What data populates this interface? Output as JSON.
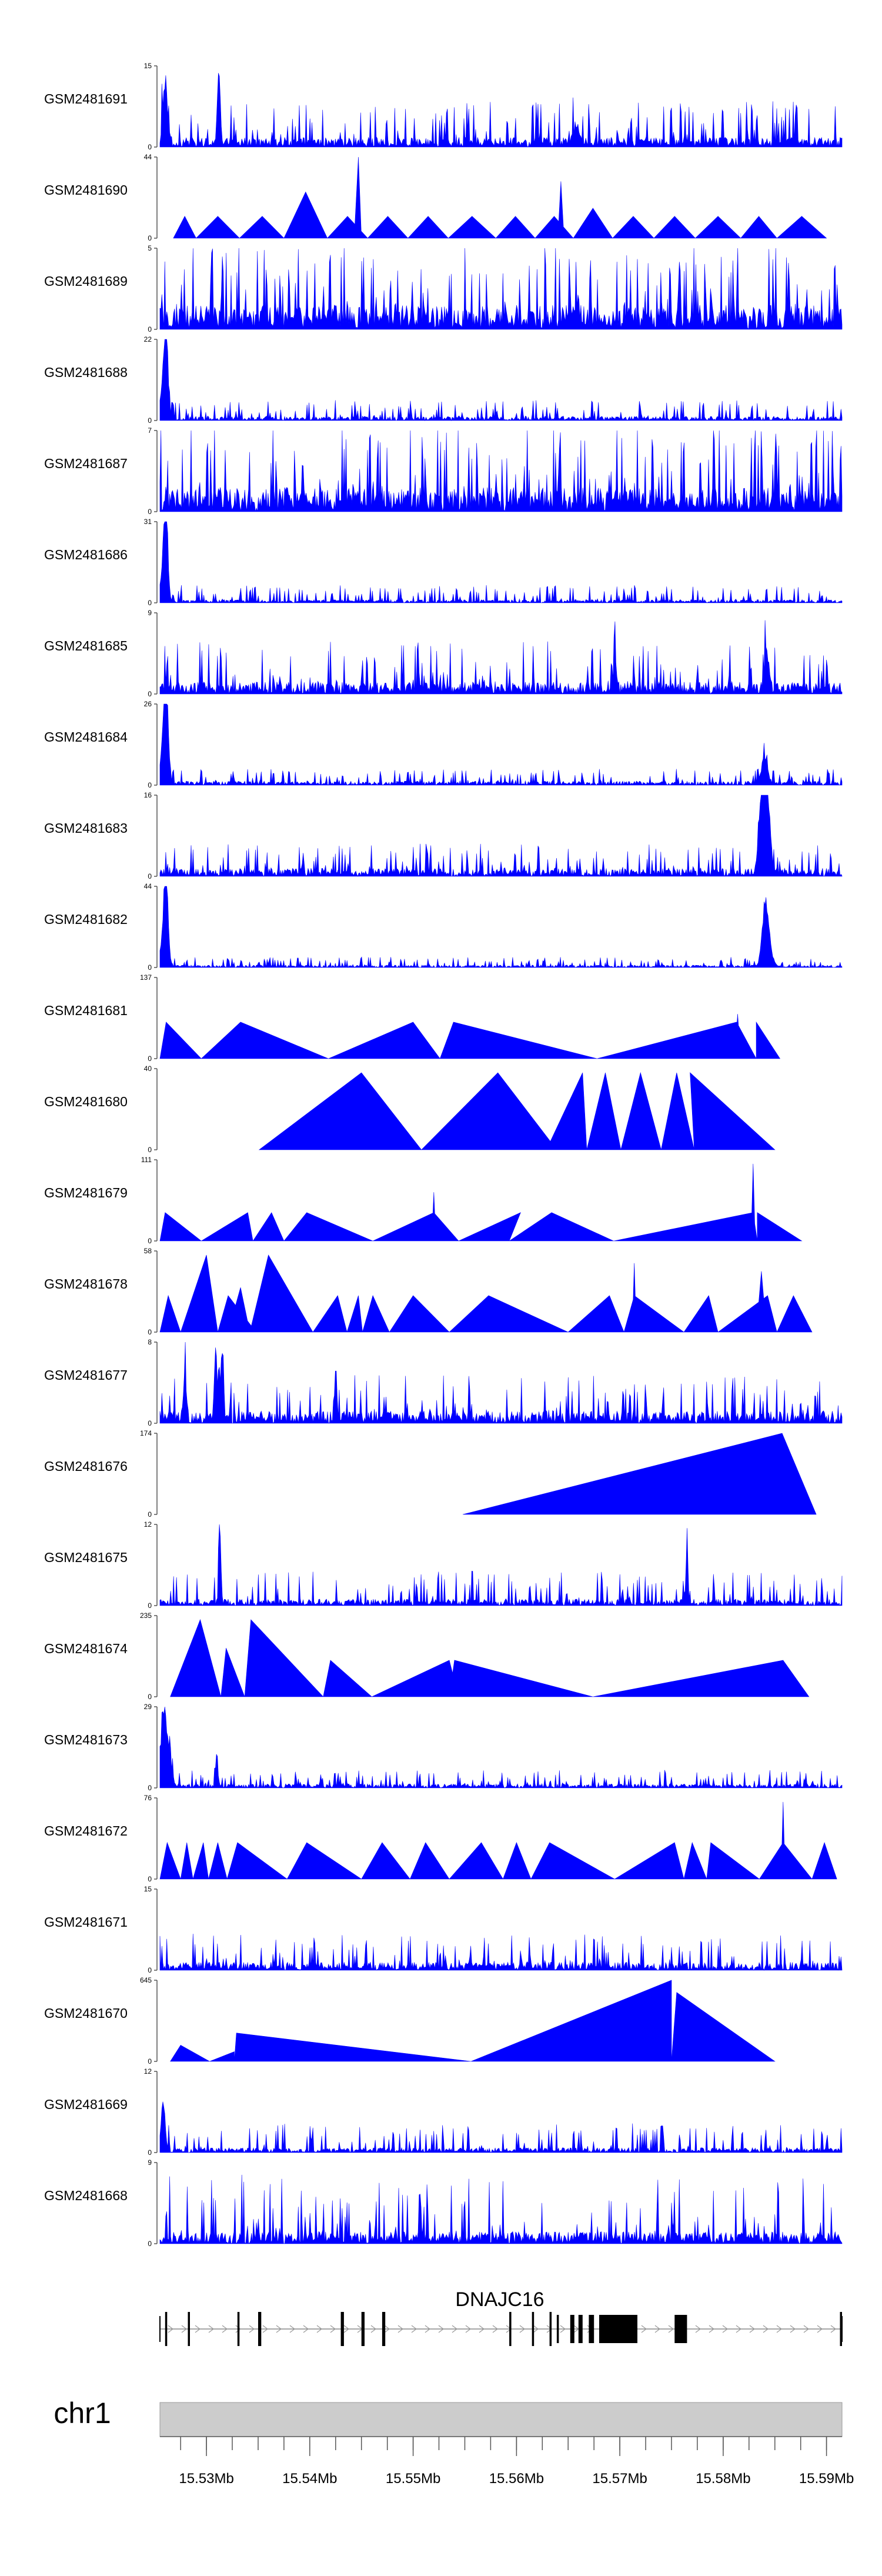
{
  "chart_data": {
    "type": "area",
    "title": "",
    "chromosome": "chr1",
    "xlim_bp": [
      15525500,
      15591500
    ],
    "axis_ticks_bp": [
      15530000,
      15540000,
      15550000,
      15560000,
      15570000,
      15580000,
      15590000
    ],
    "axis_tick_labels": [
      "15.53Mb",
      "15.54Mb",
      "15.55Mb",
      "15.56Mb",
      "15.57Mb",
      "15.58Mb",
      "15.59Mb"
    ],
    "gene": {
      "name": "DNAJC16",
      "start_bp": 15525500,
      "end_bp": 15591500,
      "strand": "+",
      "exons": [
        {
          "start_bp": 15526000,
          "end_bp": 15526200,
          "thick": false
        },
        {
          "start_bp": 15528200,
          "end_bp": 15528400,
          "thick": false
        },
        {
          "start_bp": 15533000,
          "end_bp": 15533200,
          "thick": false
        },
        {
          "start_bp": 15535000,
          "end_bp": 15535300,
          "thick": false
        },
        {
          "start_bp": 15543000,
          "end_bp": 15543300,
          "thick": false
        },
        {
          "start_bp": 15545000,
          "end_bp": 15545300,
          "thick": false
        },
        {
          "start_bp": 15547000,
          "end_bp": 15547300,
          "thick": false
        },
        {
          "start_bp": 15559300,
          "end_bp": 15559500,
          "thick": false
        },
        {
          "start_bp": 15561500,
          "end_bp": 15561700,
          "thick": false
        },
        {
          "start_bp": 15563200,
          "end_bp": 15563400,
          "thick": false
        },
        {
          "start_bp": 15563900,
          "end_bp": 15564100,
          "thick": true
        },
        {
          "start_bp": 15565200,
          "end_bp": 15565600,
          "thick": true
        },
        {
          "start_bp": 15566000,
          "end_bp": 15566400,
          "thick": true
        },
        {
          "start_bp": 15567000,
          "end_bp": 15567500,
          "thick": true
        },
        {
          "start_bp": 15568000,
          "end_bp": 15571700,
          "thick": true
        },
        {
          "start_bp": 15575300,
          "end_bp": 15576500,
          "thick": true
        },
        {
          "start_bp": 15591300,
          "end_bp": 15591500,
          "thick": false
        }
      ]
    },
    "series": [
      {
        "name": "GSM2481691",
        "ymax": 15,
        "style": "noisy",
        "base": 0.12,
        "spike": 0.45,
        "seed": 91,
        "peaks": [
          [
            15526000,
            0.85,
            300
          ],
          [
            15531200,
            1.0,
            200
          ],
          [
            15565800,
            0.25,
            400
          ]
        ],
        "tri": []
      },
      {
        "name": "GSM2481690",
        "ymax": 44,
        "style": "triangles",
        "seed": 90,
        "peaks": [],
        "tri": [
          [
            15526800,
            15529000,
            15527900,
            0.27
          ],
          [
            15529000,
            15533200,
            15531100,
            0.27
          ],
          [
            15533200,
            15537500,
            15535400,
            0.27
          ],
          [
            15537500,
            15541700,
            15539600,
            0.57
          ],
          [
            15541700,
            15545600,
            15543650,
            0.27
          ],
          [
            15544300,
            15545000,
            15544700,
            1.0
          ],
          [
            15545600,
            15549500,
            15547550,
            0.27
          ],
          [
            15549500,
            15553400,
            15551450,
            0.27
          ],
          [
            15553400,
            15558000,
            15555700,
            0.27
          ],
          [
            15558000,
            15561800,
            15559900,
            0.27
          ],
          [
            15561800,
            15565500,
            15563650,
            0.27
          ],
          [
            15564000,
            15564600,
            15564300,
            0.7
          ],
          [
            15565500,
            15569300,
            15567400,
            0.37
          ],
          [
            15569300,
            15573300,
            15571300,
            0.27
          ],
          [
            15573300,
            15577300,
            15575300,
            0.27
          ],
          [
            15577300,
            15581700,
            15579500,
            0.27
          ],
          [
            15581700,
            15585200,
            15583450,
            0.27
          ],
          [
            15585200,
            15590000,
            15587600,
            0.27
          ]
        ]
      },
      {
        "name": "GSM2481689",
        "ymax": 5,
        "style": "noisy",
        "base": 0.3,
        "spike": 0.75,
        "seed": 89,
        "peaks": [],
        "tri": []
      },
      {
        "name": "GSM2481688",
        "ymax": 22,
        "style": "noisy",
        "base": 0.05,
        "spike": 0.2,
        "seed": 88,
        "peaks": [
          [
            15526100,
            1.0,
            220
          ],
          [
            15525900,
            0.6,
            400
          ]
        ],
        "tri": []
      },
      {
        "name": "GSM2481687",
        "ymax": 7,
        "style": "noisy",
        "base": 0.3,
        "spike": 0.85,
        "seed": 87,
        "peaks": [],
        "tri": []
      },
      {
        "name": "GSM2481686",
        "ymax": 31,
        "style": "noisy",
        "base": 0.04,
        "spike": 0.18,
        "seed": 86,
        "peaks": [
          [
            15526100,
            1.0,
            220
          ],
          [
            15525900,
            0.55,
            400
          ]
        ],
        "tri": []
      },
      {
        "name": "GSM2481685",
        "ymax": 9,
        "style": "noisy",
        "base": 0.15,
        "spike": 0.5,
        "seed": 85,
        "peaks": [
          [
            15569500,
            0.95,
            120
          ],
          [
            15584200,
            0.5,
            300
          ]
        ],
        "tri": []
      },
      {
        "name": "GSM2481684",
        "ymax": 26,
        "style": "noisy",
        "base": 0.05,
        "spike": 0.15,
        "seed": 84,
        "peaks": [
          [
            15526100,
            1.0,
            250
          ],
          [
            15525900,
            0.6,
            450
          ],
          [
            15584000,
            0.38,
            400
          ]
        ],
        "tri": []
      },
      {
        "name": "GSM2481683",
        "ymax": 16,
        "style": "noisy",
        "base": 0.1,
        "spike": 0.3,
        "seed": 83,
        "peaks": [
          [
            15584000,
            1.0,
            350
          ],
          [
            15583600,
            0.8,
            300
          ],
          [
            15584400,
            0.75,
            300
          ]
        ],
        "tri": []
      },
      {
        "name": "GSM2481682",
        "ymax": 44,
        "style": "noisy",
        "base": 0.03,
        "spike": 0.1,
        "seed": 82,
        "peaks": [
          [
            15526100,
            1.0,
            250
          ],
          [
            15525900,
            0.5,
            450
          ],
          [
            15584000,
            0.5,
            400
          ],
          [
            15584300,
            0.4,
            500
          ]
        ],
        "tri": []
      },
      {
        "name": "GSM2481681",
        "ymax": 137,
        "style": "triangles",
        "seed": 81,
        "peaks": [],
        "tri": [
          [
            15525500,
            15529500,
            15526100,
            0.45
          ],
          [
            15529500,
            15541800,
            15533300,
            0.45
          ],
          [
            15541800,
            15552600,
            15550000,
            0.45
          ],
          [
            15552600,
            15567800,
            15553900,
            0.45
          ],
          [
            15567800,
            15583200,
            15581300,
            0.45
          ],
          [
            15581100,
            15581700,
            15581400,
            0.55
          ],
          [
            15583200,
            15585500,
            15583200,
            0.45
          ]
        ]
      },
      {
        "name": "GSM2481680",
        "ymax": 40,
        "style": "triangles",
        "seed": 80,
        "peaks": [],
        "tri": [
          [
            15535100,
            15550800,
            15545000,
            0.95
          ],
          [
            15550800,
            15563900,
            15558200,
            0.95
          ],
          [
            15562900,
            15566800,
            15566400,
            0.95
          ],
          [
            15566800,
            15570100,
            15568600,
            0.95
          ],
          [
            15570100,
            15574000,
            15572000,
            0.95
          ],
          [
            15574000,
            15577200,
            15575500,
            0.95
          ],
          [
            15577200,
            15585000,
            15576800,
            0.95
          ]
        ]
      },
      {
        "name": "GSM2481679",
        "ymax": 111,
        "style": "triangles",
        "seed": 79,
        "peaks": [],
        "tri": [
          [
            15525500,
            15529500,
            15526000,
            0.35
          ],
          [
            15529500,
            15534500,
            15534000,
            0.35
          ],
          [
            15534500,
            15537500,
            15536300,
            0.35
          ],
          [
            15537500,
            15546100,
            15539700,
            0.35
          ],
          [
            15546100,
            15554400,
            15552000,
            0.35
          ],
          [
            15551800,
            15552200,
            15552000,
            0.6
          ],
          [
            15554400,
            15559300,
            15560400,
            0.35
          ],
          [
            15559300,
            15569400,
            15563400,
            0.35
          ],
          [
            15569400,
            15583300,
            15582900,
            0.35
          ],
          [
            15582700,
            15583100,
            15582900,
            0.95
          ],
          [
            15583300,
            15587600,
            15583300,
            0.35
          ]
        ]
      },
      {
        "name": "GSM2481678",
        "ymax": 58,
        "style": "triangles",
        "seed": 78,
        "peaks": [],
        "tri": [
          [
            15525500,
            15527500,
            15526300,
            0.45
          ],
          [
            15527500,
            15531100,
            15530000,
            0.95
          ],
          [
            15531100,
            15534800,
            15532100,
            0.45
          ],
          [
            15532100,
            15534200,
            15533300,
            0.55
          ],
          [
            15534200,
            15540300,
            15536000,
            0.95
          ],
          [
            15540300,
            15543600,
            15542700,
            0.45
          ],
          [
            15543600,
            15545100,
            15544700,
            0.45
          ],
          [
            15545100,
            15547700,
            15546100,
            0.45
          ],
          [
            15547700,
            15553500,
            15550000,
            0.45
          ],
          [
            15553500,
            15565000,
            15557300,
            0.45
          ],
          [
            15565000,
            15570400,
            15569000,
            0.45
          ],
          [
            15570400,
            15576200,
            15571400,
            0.45
          ],
          [
            15571200,
            15571600,
            15571400,
            0.85
          ],
          [
            15576200,
            15579500,
            15578600,
            0.45
          ],
          [
            15579500,
            15585200,
            15584300,
            0.45
          ],
          [
            15583200,
            15584200,
            15583700,
            0.75
          ],
          [
            15585200,
            15588600,
            15586800,
            0.45
          ]
        ]
      },
      {
        "name": "GSM2481677",
        "ymax": 8,
        "style": "noisy",
        "base": 0.15,
        "spike": 0.45,
        "seed": 77,
        "peaks": [
          [
            15530900,
            0.95,
            180
          ],
          [
            15531500,
            0.85,
            200
          ],
          [
            15527900,
            0.6,
            200
          ],
          [
            15542500,
            0.65,
            150
          ]
        ],
        "tri": []
      },
      {
        "name": "GSM2481676",
        "ymax": 174,
        "style": "triangles",
        "seed": 76,
        "peaks": [],
        "tri": [
          [
            15554800,
            15589000,
            15585700,
            1.0
          ]
        ]
      },
      {
        "name": "GSM2481675",
        "ymax": 12,
        "style": "noisy",
        "base": 0.08,
        "spike": 0.35,
        "seed": 75,
        "peaks": [
          [
            15531300,
            0.95,
            150
          ],
          [
            15576500,
            1.0,
            110
          ]
        ],
        "tri": []
      },
      {
        "name": "GSM2481674",
        "ymax": 235,
        "style": "triangles",
        "seed": 74,
        "peaks": [],
        "tri": [
          [
            15526500,
            15531400,
            15529400,
            0.95
          ],
          [
            15531400,
            15533700,
            15531900,
            0.6
          ],
          [
            15533700,
            15541300,
            15534300,
            0.95
          ],
          [
            15541300,
            15546000,
            15542000,
            0.45
          ],
          [
            15546000,
            15554400,
            15553500,
            0.45
          ],
          [
            15553500,
            15567400,
            15554000,
            0.45
          ],
          [
            15567400,
            15588300,
            15585800,
            0.45
          ]
        ]
      },
      {
        "name": "GSM2481673",
        "ymax": 29,
        "style": "noisy",
        "base": 0.05,
        "spike": 0.17,
        "seed": 73,
        "peaks": [
          [
            15525800,
            0.85,
            350
          ],
          [
            15526300,
            0.5,
            400
          ],
          [
            15531000,
            0.5,
            150
          ]
        ],
        "tri": []
      },
      {
        "name": "GSM2481672",
        "ymax": 76,
        "style": "triangles",
        "seed": 72,
        "peaks": [],
        "tri": [
          [
            15525500,
            15527500,
            15526200,
            0.45
          ],
          [
            15527500,
            15528700,
            15528100,
            0.45
          ],
          [
            15528700,
            15530200,
            15529700,
            0.45
          ],
          [
            15530200,
            15532000,
            15531100,
            0.45
          ],
          [
            15532000,
            15537800,
            15533000,
            0.45
          ],
          [
            15537800,
            15545000,
            15539700,
            0.45
          ],
          [
            15545000,
            15549700,
            15547000,
            0.45
          ],
          [
            15549700,
            15553500,
            15551200,
            0.45
          ],
          [
            15553500,
            15558700,
            15556600,
            0.45
          ],
          [
            15558700,
            15561400,
            15560000,
            0.45
          ],
          [
            15561400,
            15569500,
            15563200,
            0.45
          ],
          [
            15569500,
            15576200,
            15575300,
            0.45
          ],
          [
            15576200,
            15578400,
            15577000,
            0.45
          ],
          [
            15578400,
            15583500,
            15578800,
            0.45
          ],
          [
            15583500,
            15588600,
            15585800,
            0.45
          ],
          [
            15585600,
            15586000,
            15585800,
            0.95
          ],
          [
            15588600,
            15591000,
            15589800,
            0.45
          ]
        ]
      },
      {
        "name": "GSM2481671",
        "ymax": 15,
        "style": "noisy",
        "base": 0.1,
        "spike": 0.35,
        "seed": 71,
        "peaks": [],
        "tri": []
      },
      {
        "name": "GSM2481670",
        "ymax": 645,
        "style": "triangles",
        "seed": 70,
        "peaks": [],
        "tri": [
          [
            15526500,
            15530300,
            15527500,
            0.2
          ],
          [
            15530300,
            15532700,
            15532700,
            0.12
          ],
          [
            15532700,
            15555600,
            15532900,
            0.35
          ],
          [
            15555600,
            15575000,
            15575000,
            1.0
          ],
          [
            15575000,
            15585000,
            15575500,
            0.85
          ]
        ]
      },
      {
        "name": "GSM2481669",
        "ymax": 12,
        "style": "noisy",
        "base": 0.06,
        "spike": 0.3,
        "seed": 69,
        "peaks": [
          [
            15525800,
            0.6,
            300
          ]
        ],
        "tri": []
      },
      {
        "name": "GSM2481668",
        "ymax": 9,
        "style": "noisy",
        "base": 0.15,
        "spike": 0.7,
        "seed": 68,
        "peaks": [],
        "tri": []
      }
    ]
  }
}
